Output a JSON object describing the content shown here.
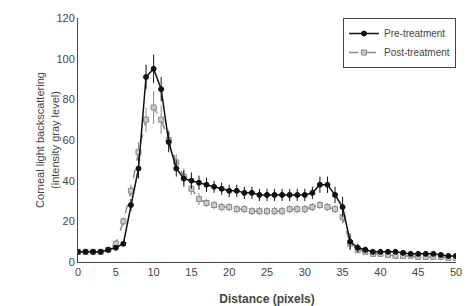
{
  "chart_data": {
    "type": "line",
    "xlabel": "Distance (pixels)",
    "ylabel": "Corneal light backscattering\n(intensity gray level)",
    "x": [
      0,
      1,
      2,
      3,
      4,
      5,
      6,
      7,
      8,
      9,
      10,
      11,
      12,
      13,
      14,
      15,
      16,
      17,
      18,
      19,
      20,
      21,
      22,
      23,
      24,
      25,
      26,
      27,
      28,
      29,
      30,
      31,
      32,
      33,
      34,
      35,
      36,
      37,
      38,
      39,
      40,
      41,
      42,
      43,
      44,
      45,
      46,
      47,
      48,
      49,
      50
    ],
    "series": [
      {
        "name": "Post-treatment",
        "color": "#888888",
        "marker": "square",
        "line_style": "dashed",
        "values": [
          5,
          5,
          5,
          5,
          6,
          9,
          20,
          35,
          54,
          70,
          76,
          70,
          60,
          49,
          42,
          36,
          31,
          29,
          28,
          27,
          27,
          26,
          26,
          25,
          25,
          25,
          25,
          25,
          26,
          26,
          26,
          27,
          28,
          27,
          26,
          22,
          9,
          6,
          5,
          4,
          4,
          3.5,
          3,
          3,
          3,
          2.5,
          2.5,
          2.5,
          2.5,
          2,
          2
        ],
        "yerr": [
          0.8,
          0.8,
          0.8,
          0.8,
          1,
          1.5,
          2,
          3,
          5,
          6,
          8,
          7,
          5,
          4,
          4,
          3,
          3,
          2,
          2,
          2,
          2,
          2,
          2,
          2,
          2,
          2,
          2,
          2,
          2,
          2,
          2,
          2,
          2,
          2,
          2,
          3,
          3,
          2,
          1.5,
          1,
          1,
          1,
          1,
          1,
          1,
          1,
          1,
          1,
          1,
          1,
          1
        ]
      },
      {
        "name": "Pre-treatment",
        "color": "#111111",
        "marker": "circle",
        "line_style": "solid",
        "values": [
          5,
          5,
          5,
          5,
          6,
          7,
          9,
          28,
          46,
          91,
          95,
          85,
          59,
          46,
          41,
          40,
          39,
          38,
          37,
          36,
          35,
          35,
          34,
          34,
          33,
          33,
          33,
          33,
          33,
          33,
          33,
          34,
          38,
          38,
          33,
          27,
          10,
          7,
          6,
          5,
          5,
          5,
          5,
          4.5,
          4,
          4,
          4,
          4,
          3.5,
          3,
          3
        ],
        "yerr": [
          0.8,
          0.8,
          0.8,
          0.8,
          0.8,
          1,
          1.5,
          3,
          5,
          6,
          7,
          6,
          5,
          4,
          4,
          4,
          3.5,
          3.5,
          3,
          3,
          3,
          3,
          3,
          3,
          3,
          3,
          3,
          3,
          3,
          3,
          3,
          3,
          4,
          4,
          4,
          5,
          4,
          2,
          1.5,
          1,
          1,
          1,
          1,
          1,
          1,
          1,
          1,
          1,
          1,
          1,
          1
        ]
      }
    ],
    "xlim": [
      0,
      50
    ],
    "ylim": [
      0,
      120
    ],
    "xticks": [
      0,
      5,
      10,
      15,
      20,
      25,
      30,
      35,
      40,
      45,
      50
    ],
    "yticks": [
      0,
      20,
      40,
      60,
      80,
      100,
      120
    ],
    "grid": false,
    "legend": "upper right"
  }
}
